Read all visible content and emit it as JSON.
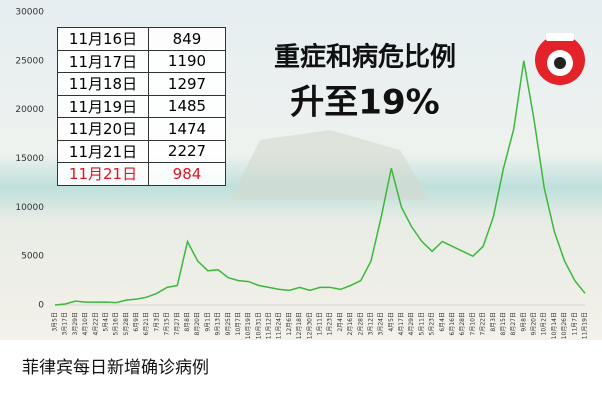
{
  "chart_data": {
    "type": "line",
    "color": "#3cb83c",
    "categories": [
      "3月5日",
      "3月17日",
      "3月29日",
      "4月10日",
      "4月22日",
      "5月4日",
      "5月16日",
      "5月28日",
      "6月9日",
      "6月21日",
      "7月3日",
      "7月15日",
      "7月27日",
      "8月8日",
      "8月20日",
      "9月1日",
      "9月13日",
      "9月25日",
      "10月7日",
      "10月19日",
      "10月31日",
      "11月12日",
      "11月24日",
      "12月6日",
      "12月18日",
      "12月30日",
      "1月11日",
      "1月23日",
      "2月4日",
      "2月16日",
      "2月28日",
      "3月12日",
      "3月24日",
      "4月5日",
      "4月17日",
      "4月29日",
      "5月11日",
      "5月23日",
      "6月4日",
      "6月16日",
      "6月28日",
      "7月10日",
      "7月22日",
      "8月3日",
      "8月15日",
      "8月27日",
      "9月8日",
      "9月20日",
      "10月2日",
      "10月14日",
      "10月26日",
      "11月7日",
      "11月19日"
    ],
    "values": [
      0,
      100,
      400,
      300,
      300,
      300,
      250,
      500,
      600,
      800,
      1200,
      1800,
      2000,
      6500,
      4500,
      3500,
      3600,
      2800,
      2500,
      2400,
      2000,
      1800,
      1600,
      1500,
      1800,
      1500,
      1800,
      1800,
      1600,
      2000,
      2500,
      4500,
      9000,
      14000,
      10000,
      8000,
      6500,
      5500,
      6500,
      6000,
      5500,
      5000,
      6000,
      9000,
      14000,
      18000,
      25000,
      19000,
      12000,
      7500,
      4500,
      2500,
      1200
    ],
    "ylim": [
      0,
      30000
    ],
    "yticks": [
      0,
      5000,
      10000,
      15000,
      20000,
      25000,
      30000
    ]
  },
  "table": {
    "rows": [
      [
        "11月16日",
        849
      ],
      [
        "11月17日",
        1190
      ],
      [
        "11月18日",
        1297
      ],
      [
        "11月19日",
        1485
      ],
      [
        "11月20日",
        1474
      ],
      [
        "11月21日",
        2227
      ],
      [
        "11月21日",
        984
      ]
    ]
  },
  "headline": {
    "line1": "重症和病危比例",
    "line2": "升至19%"
  },
  "caption": "菲律宾每日新增确诊病例"
}
